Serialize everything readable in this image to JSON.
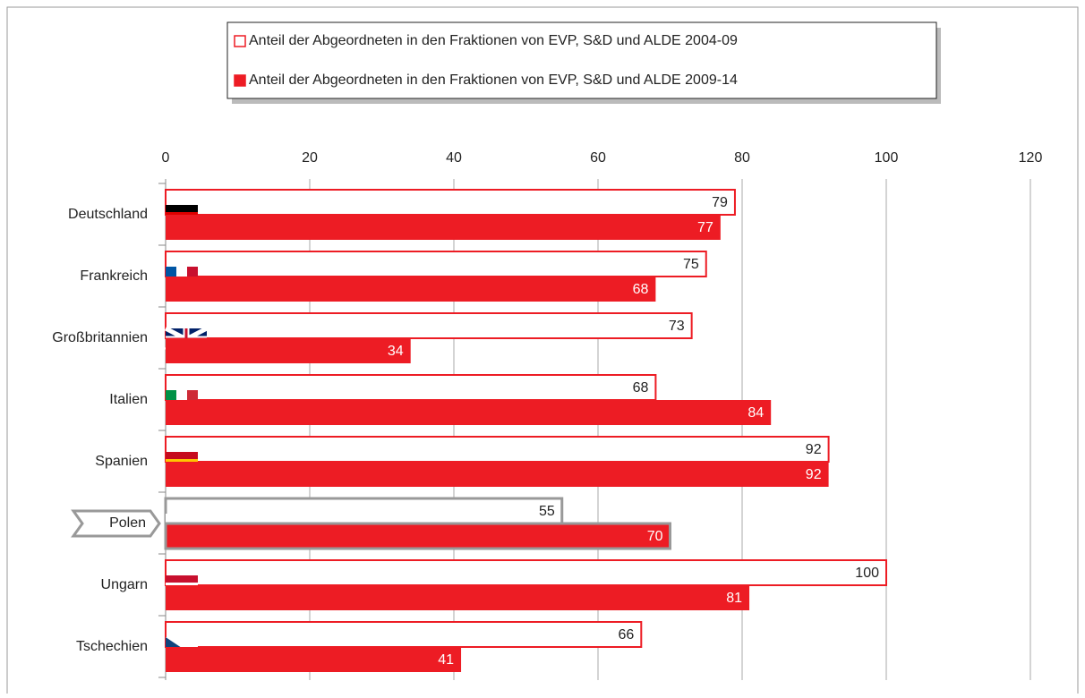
{
  "chart_data": {
    "type": "bar",
    "orientation": "horizontal",
    "categories": [
      "Deutschland",
      "Frankreich",
      "Großbritannien",
      "Italien",
      "Spanien",
      "Polen",
      "Ungarn",
      "Tschechien"
    ],
    "series": [
      {
        "name": "Anteil der Abgeordneten in den Fraktionen von EVP, S&D und ALDE  2004-09",
        "color": "#ed1c24",
        "style": "outline",
        "values": [
          79,
          75,
          73,
          68,
          92,
          55,
          100,
          66
        ]
      },
      {
        "name": "Anteil der Abgeordneten in den Fraktionen von EVP, S&D und ALDE  2009-14",
        "color": "#ed1c24",
        "style": "filled",
        "values": [
          77,
          68,
          34,
          84,
          92,
          70,
          81,
          41
        ]
      }
    ],
    "xlim": [
      0,
      120
    ],
    "xticks": [
      0,
      20,
      40,
      60,
      80,
      100,
      120
    ],
    "grid": true,
    "legend": "top",
    "highlight_index": 5,
    "highlight_color": "#999999"
  }
}
